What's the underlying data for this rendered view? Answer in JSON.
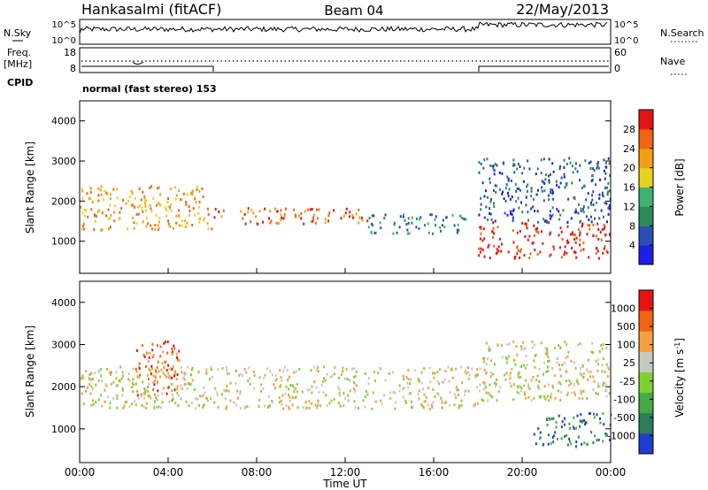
{
  "header": {
    "station": "Hankasalmi (fitACF)",
    "beam": "Beam 04",
    "date": "22/May/2013"
  },
  "status_panels": {
    "nsky_label": "N.Sky",
    "nsky_ticks": [
      "10^5",
      "10^0"
    ],
    "nsearch_label": "N.Search",
    "nsearch_ticks": [
      "10^5",
      "10^0"
    ],
    "freq_label_1": "Freq.",
    "freq_label_2": "[MHz]",
    "freq_ticks": [
      "18",
      "8"
    ],
    "nave_label": "Nave",
    "nave_ticks": [
      "60",
      "0"
    ],
    "cpid_label": "CPID",
    "cpid_text": "normal (fast stereo) 153"
  },
  "chart_data": [
    {
      "type": "heatmap",
      "name": "power",
      "ylabel": "Slant Range [km]",
      "ylim": [
        200,
        4500
      ],
      "yticks": [
        1000,
        2000,
        3000,
        4000
      ],
      "xlim": [
        0,
        24
      ],
      "colorbar_label": "Power [dB]",
      "colorbar_ticks": [
        "28",
        "24",
        "20",
        "16",
        "12",
        "8",
        "4"
      ],
      "colors": [
        "#1e1ee6",
        "#2850b4",
        "#2e8b57",
        "#3cb371",
        "#e6d21e",
        "#f5a014",
        "#f06414",
        "#e61414"
      ],
      "features": [
        {
          "t0": 0.0,
          "t1": 6.0,
          "r0": 1300,
          "r1": 2400,
          "level": 5
        },
        {
          "t0": 6.0,
          "t1": 13.0,
          "r0": 1450,
          "r1": 1850,
          "level": 6
        },
        {
          "t0": 13.0,
          "t1": 17.5,
          "r0": 1200,
          "r1": 1700,
          "level": 2
        },
        {
          "t0": 18.0,
          "t1": 24.0,
          "r0": 600,
          "r1": 1500,
          "level": 7
        },
        {
          "t0": 18.0,
          "t1": 24.0,
          "r0": 1500,
          "r1": 3100,
          "level": 1
        }
      ]
    },
    {
      "type": "heatmap",
      "name": "velocity",
      "ylabel": "Slant Range [km]",
      "ylim": [
        200,
        4500
      ],
      "yticks": [
        1000,
        2000,
        3000,
        4000
      ],
      "xlim": [
        0,
        24
      ],
      "xlabel": "Time UT",
      "xticks": [
        "00:00",
        "04:00",
        "08:00",
        "12:00",
        "16:00",
        "20:00",
        "00:00"
      ],
      "colorbar_label": "Velocity [m s",
      "colorbar_label_sup": "-1",
      "colorbar_label_end": "]",
      "colorbar_ticks": [
        "1000",
        "500",
        "100",
        "25",
        "-25",
        "-100",
        "-500",
        "-1000"
      ],
      "colors": [
        "#1e3cd2",
        "#2d7d5a",
        "#46aa46",
        "#7dd232",
        "#c8c8c0",
        "#f5a03c",
        "#f06414",
        "#e61414"
      ],
      "features": [
        {
          "t0": 0.0,
          "t1": 18.0,
          "r0": 1500,
          "r1": 2500,
          "level": 4
        },
        {
          "t0": 2.5,
          "t1": 4.5,
          "r0": 1700,
          "r1": 3100,
          "level": 6
        },
        {
          "t0": 18.0,
          "t1": 24.0,
          "r0": 1700,
          "r1": 3100,
          "level": 4
        },
        {
          "t0": 20.5,
          "t1": 24.0,
          "r0": 600,
          "r1": 1400,
          "level": 1
        }
      ]
    }
  ]
}
